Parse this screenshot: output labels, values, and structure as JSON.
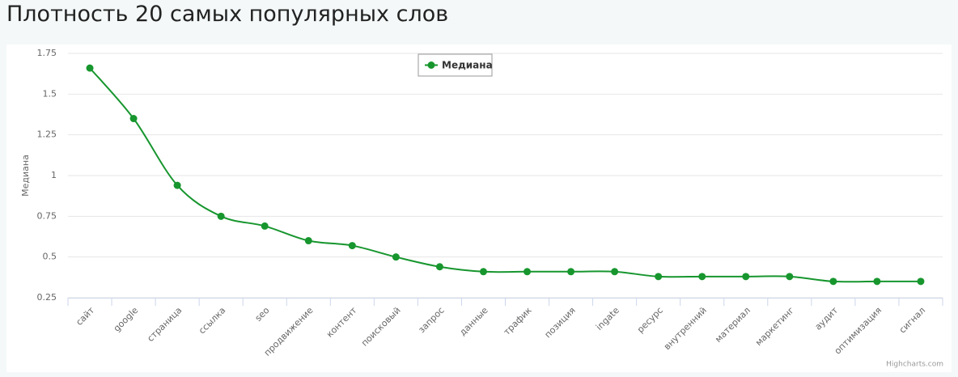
{
  "page_title": "Плотность 20 самых популярных слов",
  "chart_data": {
    "type": "line",
    "y_label": "Медиана",
    "credits": "Highcharts.com",
    "categories": [
      "сайт",
      "google",
      "страница",
      "ссылка",
      "seo",
      "продвижение",
      "контент",
      "поисковый",
      "запрос",
      "данные",
      "трафик",
      "позиция",
      "ingate",
      "ресурс",
      "внутренний",
      "материал",
      "маркетинг",
      "аудит",
      "оптимизация",
      "сигнал"
    ],
    "series": [
      {
        "name": "Медиана",
        "color": "#17962e",
        "values": [
          1.66,
          1.35,
          0.94,
          0.75,
          0.69,
          0.6,
          0.57,
          0.5,
          0.44,
          0.41,
          0.41,
          0.41,
          0.41,
          0.38,
          0.38,
          0.38,
          0.38,
          0.35,
          0.35,
          0.35
        ]
      }
    ],
    "ylim": [
      0.25,
      1.75
    ],
    "yticks": [
      0.25,
      0.5,
      0.75,
      1,
      1.25,
      1.5,
      1.75
    ],
    "grid": true,
    "legend": "top"
  }
}
